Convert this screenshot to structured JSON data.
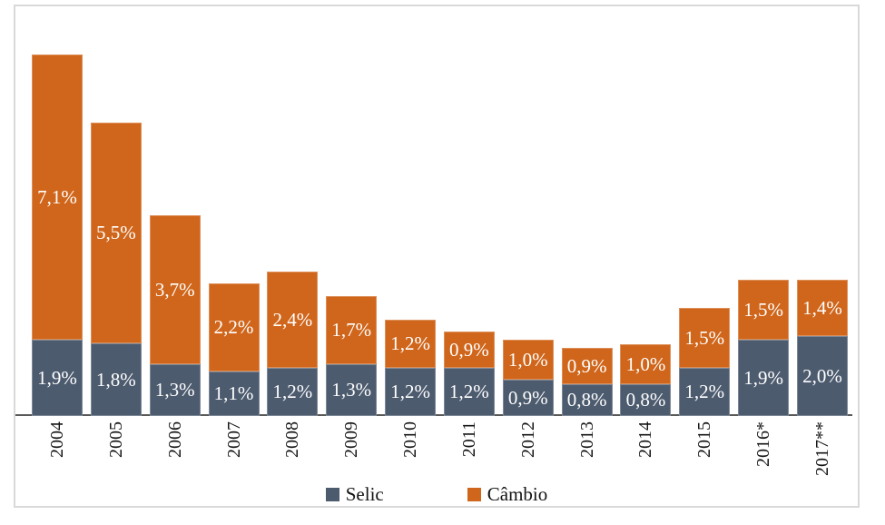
{
  "chart_data": {
    "type": "bar",
    "variant": "stacked-column",
    "title": "",
    "categories": [
      "2004",
      "2005",
      "2006",
      "2007",
      "2008",
      "2009",
      "2010",
      "2011",
      "2012",
      "2013",
      "2014",
      "2015",
      "2016*",
      "2017**"
    ],
    "series": [
      {
        "name": "Selic",
        "color": "#4D5B6F",
        "values": [
          1.9,
          1.8,
          1.3,
          1.1,
          1.2,
          1.3,
          1.2,
          1.2,
          0.9,
          0.8,
          0.8,
          1.2,
          1.9,
          2.0
        ],
        "labels": [
          "1,9%",
          "1,8%",
          "1,3%",
          "1,1%",
          "1,2%",
          "1,3%",
          "1,2%",
          "1,2%",
          "0,9%",
          "0,8%",
          "0,8%",
          "1,2%",
          "1,9%",
          "2,0%"
        ]
      },
      {
        "name": "Câmbio",
        "color": "#D0661B",
        "values": [
          7.1,
          5.5,
          3.7,
          2.2,
          2.4,
          1.7,
          1.2,
          0.9,
          1.0,
          0.9,
          1.0,
          1.5,
          1.5,
          1.4
        ],
        "labels": [
          "7,1%",
          "5,5%",
          "3,7%",
          "2,2%",
          "2,4%",
          "1,7%",
          "1,2%",
          "0,9%",
          "1,0%",
          "0,9%",
          "1,0%",
          "1,5%",
          "1,5%",
          "1,4%"
        ]
      }
    ],
    "value_suffix": "%",
    "decimal_separator": ",",
    "ylim": [
      0,
      9.2
    ],
    "grid": false,
    "data_label_color": "#FFFFFF",
    "x_tick_rotation": 90,
    "axis_line_color": "#595959",
    "frame_border_color": "#D9D9D9",
    "legend_position": "bottom"
  },
  "legend": {
    "items": [
      {
        "label": "Selic",
        "color": "#4D5B6F"
      },
      {
        "label": "Câmbio",
        "color": "#D0661B"
      }
    ]
  }
}
